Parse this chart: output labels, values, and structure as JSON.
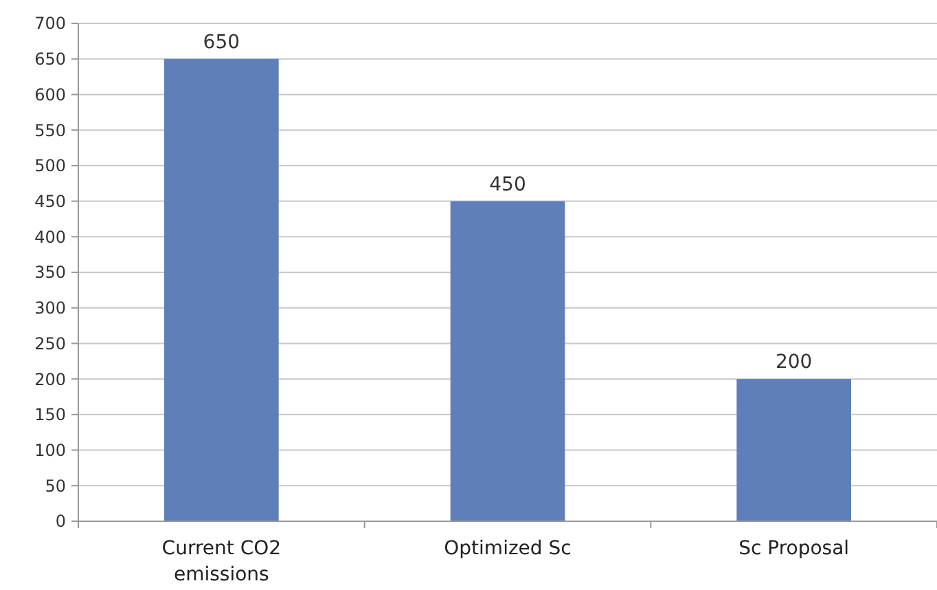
{
  "chart_data": {
    "type": "bar",
    "categories": [
      "Current CO2 emissions",
      "Optimized Sc",
      "Sc Proposal"
    ],
    "values": [
      650,
      450,
      200
    ],
    "color": "#5f7fba",
    "ylim": [
      0,
      700
    ],
    "yticks": [
      0,
      50,
      100,
      150,
      200,
      250,
      300,
      350,
      400,
      450,
      500,
      550,
      600,
      650,
      700
    ],
    "grid": "y",
    "data_labels": true
  }
}
